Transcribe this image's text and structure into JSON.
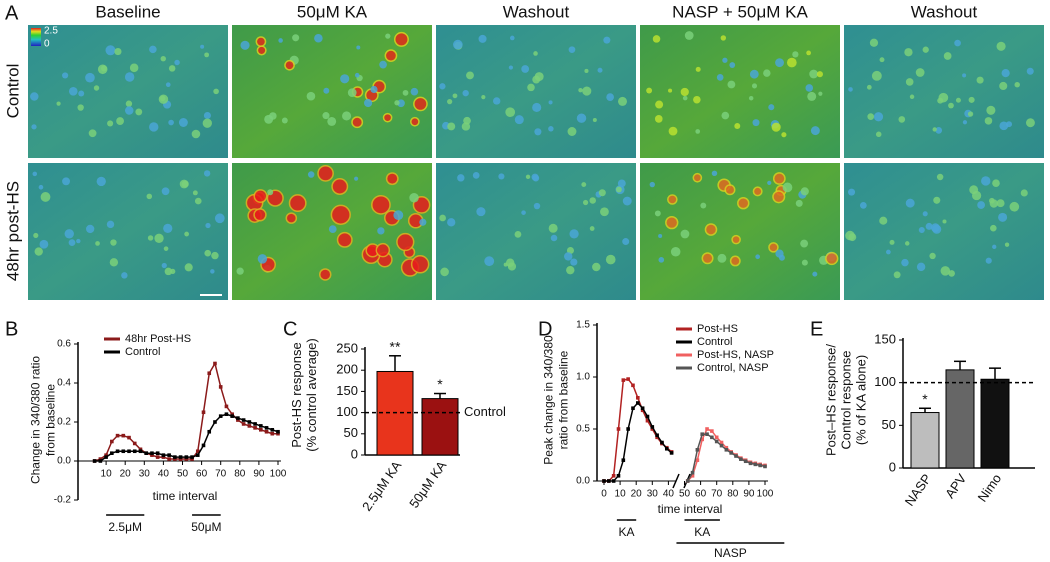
{
  "images": {
    "label": "A",
    "columns": [
      "Baseline",
      "50μM KA",
      "Washout",
      "NASP + 50μM KA",
      "Washout"
    ],
    "rows": [
      "Control",
      "48hr post-HS"
    ],
    "colorbar": [
      "2.5",
      "0"
    ]
  },
  "chart_data": [
    {
      "type": "line",
      "label": "B",
      "y_label": [
        "Change in 340/380 ratio",
        "from baseline"
      ],
      "x_label": "time interval",
      "xlim": [
        0,
        100
      ],
      "xticks": [
        10,
        20,
        30,
        40,
        50,
        60,
        70,
        80,
        90,
        100
      ],
      "ylim": [
        -0.2,
        0.6
      ],
      "yticks": [
        -0.2,
        {
          "value": 0,
          "label": "0.0"
        },
        0.2,
        0.4,
        0.6
      ],
      "series": [
        {
          "name": "48hr Post-HS",
          "color": "#8b1a1a",
          "x": [
            4,
            7,
            10,
            13,
            16,
            19,
            22,
            25,
            28,
            31,
            34,
            37,
            40,
            43,
            46,
            49,
            52,
            55,
            58,
            61,
            64,
            67,
            70,
            73,
            76,
            79,
            82,
            85,
            88,
            91,
            94,
            97,
            100
          ],
          "values": [
            0,
            0.01,
            0.03,
            0.1,
            0.13,
            0.13,
            0.12,
            0.09,
            0.06,
            0.04,
            0.03,
            0.02,
            0.02,
            0.01,
            0.01,
            0.01,
            0.01,
            0.01,
            0.05,
            0.25,
            0.45,
            0.5,
            0.38,
            0.28,
            0.24,
            0.21,
            0.19,
            0.18,
            0.17,
            0.16,
            0.15,
            0.14,
            0.14
          ]
        },
        {
          "name": "Control",
          "color": "#000000",
          "x": [
            4,
            7,
            10,
            13,
            16,
            19,
            22,
            25,
            28,
            31,
            34,
            37,
            40,
            43,
            46,
            49,
            52,
            55,
            58,
            61,
            64,
            67,
            70,
            73,
            76,
            79,
            82,
            85,
            88,
            91,
            94,
            97,
            100
          ],
          "values": [
            0,
            0,
            0.02,
            0.04,
            0.05,
            0.05,
            0.05,
            0.05,
            0.05,
            0.04,
            0.04,
            0.04,
            0.03,
            0.03,
            0.02,
            0.02,
            0.02,
            0.02,
            0.03,
            0.08,
            0.15,
            0.2,
            0.23,
            0.24,
            0.23,
            0.22,
            0.21,
            0.2,
            0.19,
            0.18,
            0.17,
            0.16,
            0.15
          ]
        }
      ],
      "annotations": [
        {
          "text": "2.5μM",
          "start": 10,
          "end": 30
        },
        {
          "text": "50μM",
          "start": 55,
          "end": 70
        }
      ]
    },
    {
      "type": "bar",
      "label": "C",
      "y_label": [
        "Post-HS response",
        "(% control average)"
      ],
      "categories": [
        "2.5μM KA",
        "50μM KA"
      ],
      "values": [
        197,
        133
      ],
      "errors": [
        37,
        12
      ],
      "colors": [
        "#e8341c",
        "#9b1111"
      ],
      "significance": [
        "**",
        "*"
      ],
      "ylim": [
        0,
        250
      ],
      "yticks": [
        0,
        50,
        100,
        150,
        200,
        250
      ],
      "reference_line": {
        "value": 100,
        "label": "Control"
      }
    },
    {
      "type": "line",
      "label": "D",
      "y_label": [
        "Peak change in 340/380",
        "ratio from baseline"
      ],
      "x_label": "time interval",
      "xlim": [
        0,
        100
      ],
      "xticks": [
        0,
        10,
        20,
        30,
        40,
        50,
        60,
        70,
        80,
        90,
        100
      ],
      "ylim": [
        0,
        1.5
      ],
      "yticks": [
        {
          "value": 0,
          "label": "0.0"
        },
        0.5,
        {
          "value": 1,
          "label": "1.0"
        },
        1.5
      ],
      "series": [
        {
          "name": "Post-HS",
          "color": "#b22222",
          "x": [
            0,
            3,
            6,
            9,
            12,
            15,
            18,
            21,
            24,
            27,
            30,
            33,
            36,
            39,
            42
          ],
          "values": [
            0,
            0,
            0.05,
            0.5,
            0.97,
            0.98,
            0.92,
            0.8,
            0.68,
            0.58,
            0.5,
            0.42,
            0.36,
            0.32,
            0.28
          ]
        },
        {
          "name": "Control",
          "color": "#000000",
          "x": [
            0,
            3,
            6,
            9,
            12,
            15,
            18,
            21,
            24,
            27,
            30,
            33,
            36,
            39,
            42
          ],
          "values": [
            0,
            0,
            0,
            0.05,
            0.2,
            0.5,
            0.7,
            0.75,
            0.7,
            0.62,
            0.52,
            0.44,
            0.37,
            0.31,
            0.27
          ]
        },
        {
          "name": "Post-HS, NASP",
          "color": "#f06060",
          "x": [
            52,
            55,
            58,
            61,
            64,
            67,
            70,
            73,
            76,
            79,
            82,
            85,
            88,
            91,
            94,
            97,
            100
          ],
          "values": [
            0,
            0.05,
            0.2,
            0.4,
            0.5,
            0.48,
            0.42,
            0.37,
            0.32,
            0.28,
            0.25,
            0.22,
            0.2,
            0.18,
            0.17,
            0.16,
            0.15
          ]
        },
        {
          "name": "Control, NASP",
          "color": "#555555",
          "x": [
            52,
            55,
            58,
            61,
            64,
            67,
            70,
            73,
            76,
            79,
            82,
            85,
            88,
            91,
            94,
            97,
            100
          ],
          "values": [
            0,
            0.08,
            0.3,
            0.45,
            0.45,
            0.42,
            0.38,
            0.34,
            0.3,
            0.27,
            0.24,
            0.21,
            0.19,
            0.17,
            0.16,
            0.15,
            0.14
          ]
        }
      ],
      "annotations": [
        {
          "text": "KA",
          "start": 8,
          "end": 20
        },
        {
          "text": "KA",
          "start": 50,
          "end": 72
        }
      ],
      "group_annotation": {
        "text": "NASP",
        "start": 45,
        "end": 112
      }
    },
    {
      "type": "bar",
      "label": "E",
      "y_label": [
        "Post–HS response/",
        "Control response",
        "(% of KA alone)"
      ],
      "categories": [
        "NASP",
        "APV",
        "Nimo"
      ],
      "values": [
        65,
        115,
        104
      ],
      "errors": [
        5,
        10,
        13
      ],
      "colors": [
        "#bdbdbd",
        "#666666",
        "#111111"
      ],
      "significance": [
        "*",
        null,
        null
      ],
      "ylim": [
        0,
        150
      ],
      "yticks": [
        0,
        50,
        100,
        150
      ],
      "reference_line": {
        "value": 100
      }
    }
  ]
}
